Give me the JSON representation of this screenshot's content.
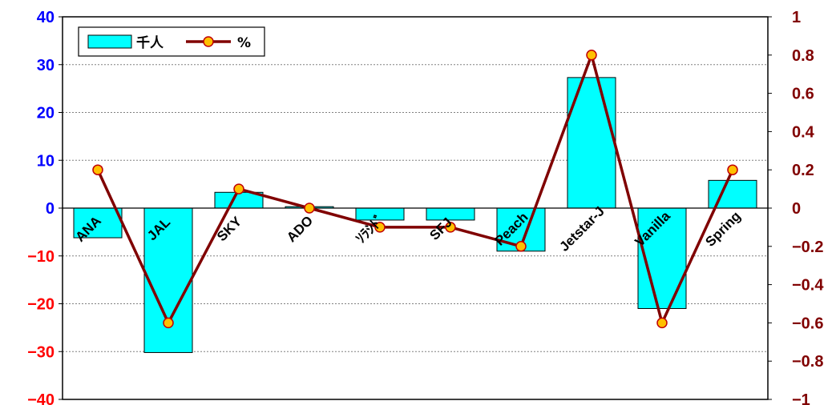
{
  "chart_data": {
    "type": "bar",
    "categories": [
      "ANA",
      "JAL",
      "SKY",
      "ADO",
      "ｿﾗｼﾄﾞ",
      "SFJ",
      "Peach",
      "Jetstar-J",
      "Vanilla",
      "Spring"
    ],
    "series": [
      {
        "name": "千人",
        "type": "bar",
        "axis": "left",
        "values": [
          -6.2,
          -30.2,
          3.3,
          0.3,
          -2.5,
          -2.5,
          -9.0,
          27.3,
          -21.0,
          5.8
        ]
      },
      {
        "name": "%",
        "type": "line",
        "axis": "right",
        "values": [
          0.2,
          -0.6,
          0.1,
          0.0,
          -0.1,
          -0.1,
          -0.2,
          0.8,
          -0.6,
          0.2
        ]
      }
    ],
    "y_left": {
      "ylim": [
        -40,
        40
      ],
      "ticks": [
        40,
        30,
        20,
        10,
        0,
        -10,
        -20,
        -30,
        -40
      ],
      "tick_labels": [
        "40",
        "30",
        "20",
        "10",
        "0",
        "−10",
        "−20",
        "−30",
        "−40"
      ]
    },
    "y_right": {
      "ylim": [
        -1,
        1
      ],
      "ticks": [
        1,
        0.8,
        0.6,
        0.4,
        0.2,
        0,
        -0.2,
        -0.4,
        -0.6,
        -0.8,
        -1
      ],
      "tick_labels": [
        "1",
        "0.8",
        "0.6",
        "0.4",
        "0.2",
        "0",
        "−0.2",
        "−0.4",
        "−0.6",
        "−0.8",
        "−1"
      ]
    },
    "grid": true,
    "legend_position": "top-left",
    "colors": {
      "bar_fill": "#00ffff",
      "line": "#800000",
      "marker_fill": "#ffc000",
      "marker_edge": "#c00000",
      "left_positive": "#0000ff",
      "left_negative": "#ff0000",
      "right_axis": "#800000"
    }
  }
}
